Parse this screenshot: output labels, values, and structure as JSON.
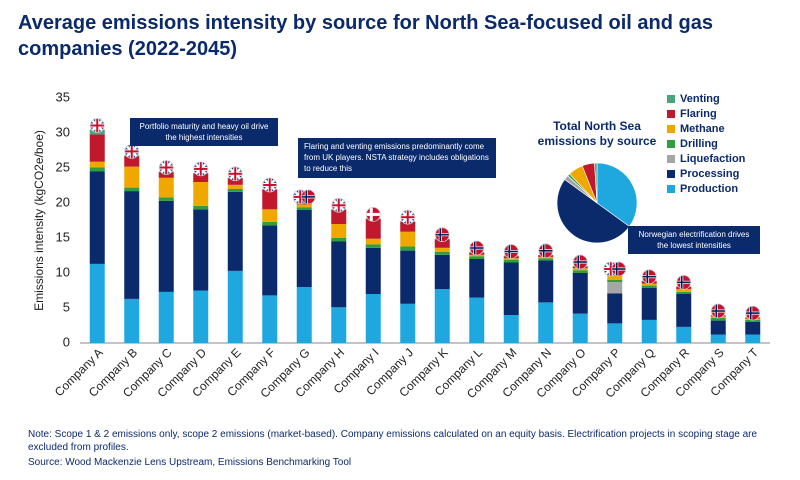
{
  "chart_data": [
    {
      "type": "bar",
      "stacked": true,
      "title": "Average emissions intensity by source for North Sea-focused oil and gas companies (2022-2045)",
      "ylabel": "Emissions intensity (kgCO2e/boe)",
      "categories": [
        "Company A",
        "Company B",
        "Company C",
        "Company D",
        "Company E",
        "Company F",
        "Company G",
        "Company H",
        "Company I",
        "Company J",
        "Company K",
        "Company L",
        "Company M",
        "Company N",
        "Company O",
        "Company P",
        "Company Q",
        "Company R",
        "Company S",
        "Company T"
      ],
      "series": [
        {
          "name": "Production",
          "color": "#1fa8e0",
          "values": [
            11.3,
            6.3,
            7.3,
            7.5,
            10.3,
            6.8,
            8.0,
            5.1,
            7.0,
            5.6,
            7.7,
            6.5,
            4.0,
            5.8,
            4.2,
            2.8,
            3.3,
            2.3,
            1.2,
            1.2
          ]
        },
        {
          "name": "Processing",
          "color": "#0b2a6b",
          "values": [
            13.2,
            15.4,
            13.0,
            11.6,
            11.3,
            10.0,
            11.0,
            9.4,
            6.6,
            7.6,
            4.9,
            5.5,
            7.5,
            6.0,
            5.8,
            4.3,
            4.6,
            4.7,
            2.0,
            1.8
          ]
        },
        {
          "name": "Liquefaction",
          "color": "#a6a6a6",
          "values": [
            0,
            0,
            0,
            0,
            0,
            0,
            0,
            0,
            0,
            0,
            0,
            0,
            0,
            0,
            0,
            1.6,
            0,
            0,
            0,
            0
          ]
        },
        {
          "name": "Drilling",
          "color": "#2e9e3f",
          "values": [
            0.6,
            0.5,
            0.5,
            0.5,
            0.4,
            0.5,
            0.4,
            0.5,
            0.5,
            0.6,
            0.4,
            0.4,
            0.4,
            0.3,
            0.4,
            0.3,
            0.3,
            0.3,
            0.4,
            0.3
          ]
        },
        {
          "name": "Methane",
          "color": "#f0a800",
          "values": [
            0.8,
            3.0,
            2.8,
            3.4,
            0.6,
            1.8,
            0.4,
            2.0,
            0.8,
            2.1,
            0.6,
            0.2,
            0.2,
            0.2,
            0.3,
            0.6,
            0.3,
            0.4,
            0.2,
            0.2
          ]
        },
        {
          "name": "Flaring",
          "color": "#c0182c",
          "values": [
            3.9,
            1.5,
            0.8,
            1.2,
            0.9,
            2.8,
            0.4,
            2.0,
            2.8,
            1.4,
            1.2,
            0.3,
            0.3,
            0.2,
            0.2,
            0.4,
            0.3,
            0.3,
            0.1,
            0.1
          ]
        },
        {
          "name": "Venting",
          "color": "#4aa57f",
          "values": [
            0.7,
            0.1,
            0.1,
            0.1,
            0.1,
            0.1,
            0.1,
            0.1,
            0.1,
            0.1,
            0.1,
            0.1,
            0.1,
            0.1,
            0.1,
            0,
            0.1,
            0.1,
            0.1,
            0.1
          ]
        }
      ],
      "ylim": [
        0,
        35
      ],
      "yticks": [
        0,
        5,
        10,
        15,
        20,
        25,
        30,
        35
      ],
      "annotations": [
        "Portfolio maturity and heavy oil drive the highest intensities",
        "Flaring and venting emissions predominantly come from UK players. NSTA strategy includes obligations to reduce this",
        "Norwegian electrification drives the lowest intensities"
      ],
      "note": "Note: Scope 1 & 2 emissions only, scope 2 emissions (market-based). Company emissions calculated on an equity basis. Electrification projects in scoping stage are excluded from profiles.",
      "source": "Source: Wood Mackenzie Lens Upstream, Emissions Benchmarking Tool"
    },
    {
      "type": "pie",
      "title": "Total North Sea emissions by source",
      "values": [
        35,
        50,
        2,
        1,
        6,
        5,
        1
      ]
    }
  ]
}
